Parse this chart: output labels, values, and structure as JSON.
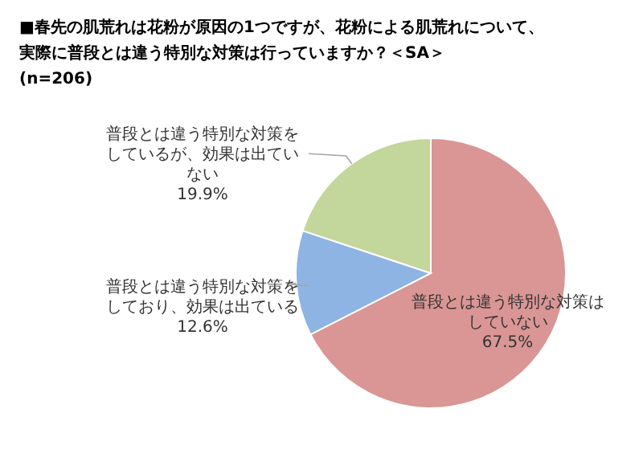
{
  "chart_data": {
    "type": "pie",
    "title": "■春先の肌荒れは花粉が原因の1つですが、花粉による肌荒れについて、実際に普段とは違う特別な対策は行っていますか？＜SA＞",
    "subtitle": "(n=206)",
    "categories": [
      "普段とは違う特別な対策はしていない",
      "普段とは違う特別な対策をしており、効果は出ている",
      "普段とは違う特別な対策をしているが、効果は出ていない"
    ],
    "values": [
      67.5,
      12.6,
      19.9
    ],
    "value_labels": [
      "67.5%",
      "12.6%",
      "19.9%"
    ],
    "colors": [
      "#d99694",
      "#8eb4e3",
      "#c3d69b"
    ]
  }
}
